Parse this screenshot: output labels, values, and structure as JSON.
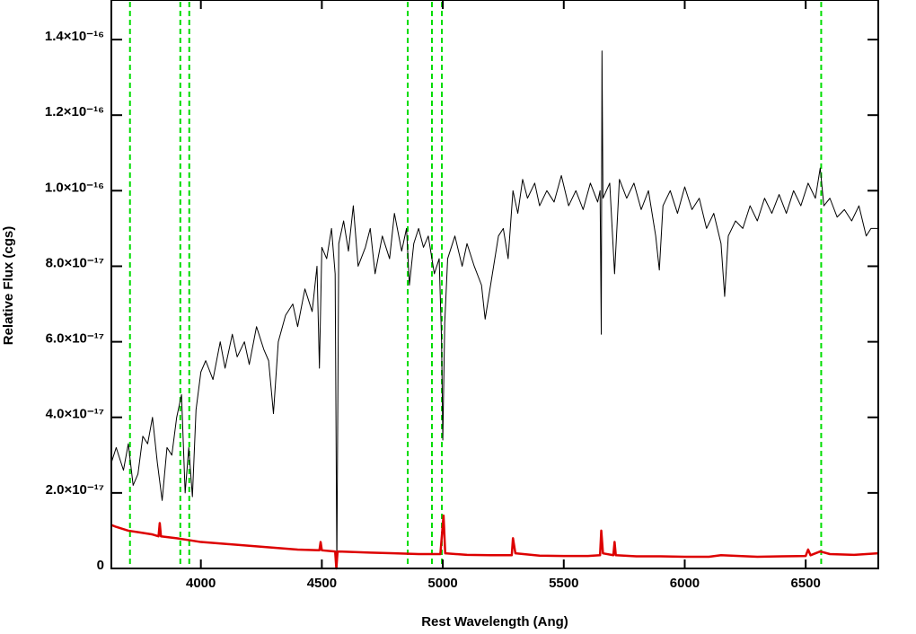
{
  "chart_data": {
    "type": "line",
    "xlabel": "Rest Wavelength (Ang)",
    "ylabel": "Relative Flux (cgs)",
    "xlim": [
      3630,
      6800
    ],
    "xticks": [
      4000,
      4500,
      5000,
      5500,
      6000,
      6500
    ],
    "ylim": [
      0,
      1.5e-16
    ],
    "yticks": [
      0,
      {
        "value": 2e-17,
        "label": "2.0×10⁻¹⁷"
      },
      {
        "value": 4e-17,
        "label": "4.0×10⁻¹⁷"
      },
      {
        "value": 6e-17,
        "label": "6.0×10⁻¹⁷"
      },
      {
        "value": 8e-17,
        "label": "8.0×10⁻¹⁷"
      },
      {
        "value": 1e-16,
        "label": "1.0×10⁻¹⁶"
      },
      {
        "value": 1.2e-16,
        "label": "1.2×10⁻¹⁶"
      },
      {
        "value": 1.4e-16,
        "label": "1.4×10⁻¹⁶"
      }
    ],
    "vlines": [
      3707,
      3915,
      3952,
      4855,
      4955,
      4996,
      6564
    ],
    "vline_color": "#00dd00",
    "series": [
      {
        "color": "#000000",
        "x": [
          3630,
          3650,
          3680,
          3700,
          3720,
          3740,
          3760,
          3780,
          3800,
          3820,
          3840,
          3860,
          3880,
          3900,
          3920,
          3935,
          3950,
          3965,
          3980,
          4000,
          4020,
          4050,
          4080,
          4100,
          4130,
          4150,
          4180,
          4200,
          4230,
          4260,
          4280,
          4300,
          4320,
          4350,
          4380,
          4400,
          4430,
          4460,
          4480,
          4490,
          4500,
          4520,
          4540,
          4555,
          4562,
          4570,
          4590,
          4610,
          4630,
          4650,
          4680,
          4700,
          4720,
          4750,
          4780,
          4800,
          4830,
          4850,
          4862,
          4880,
          4900,
          4920,
          4940,
          4965,
          4985,
          4995,
          5000,
          5008,
          5020,
          5050,
          5080,
          5100,
          5130,
          5160,
          5175,
          5190,
          5210,
          5230,
          5250,
          5270,
          5290,
          5310,
          5330,
          5350,
          5380,
          5400,
          5430,
          5460,
          5490,
          5520,
          5550,
          5580,
          5610,
          5640,
          5650,
          5655,
          5658,
          5662,
          5690,
          5710,
          5730,
          5760,
          5790,
          5820,
          5850,
          5880,
          5895,
          5910,
          5940,
          5970,
          6000,
          6030,
          6060,
          6090,
          6120,
          6150,
          6165,
          6180,
          6210,
          6240,
          6270,
          6300,
          6330,
          6360,
          6390,
          6420,
          6450,
          6480,
          6510,
          6540,
          6560,
          6575,
          6600,
          6630,
          6660,
          6690,
          6720,
          6750,
          6770,
          6800
        ],
        "values": [
          2.8e-17,
          3.2e-17,
          2.6e-17,
          3.3e-17,
          2.2e-17,
          2.5e-17,
          3.5e-17,
          3.3e-17,
          4e-17,
          2.8e-17,
          1.8e-17,
          3.2e-17,
          3e-17,
          4e-17,
          4.6e-17,
          2e-17,
          3.2e-17,
          1.9e-17,
          4.2e-17,
          5.2e-17,
          5.5e-17,
          5e-17,
          6e-17,
          5.3e-17,
          6.2e-17,
          5.6e-17,
          6e-17,
          5.4e-17,
          6.4e-17,
          5.8e-17,
          5.5e-17,
          4.1e-17,
          6e-17,
          6.7e-17,
          7e-17,
          6.4e-17,
          7.4e-17,
          6.8e-17,
          8e-17,
          5.3e-17,
          8.5e-17,
          8.2e-17,
          9e-17,
          7.8e-17,
          0,
          8.6e-17,
          9.2e-17,
          8.4e-17,
          9.6e-17,
          8e-17,
          8.5e-17,
          9e-17,
          7.8e-17,
          8.8e-17,
          8.2e-17,
          9.4e-17,
          8.4e-17,
          9e-17,
          7.5e-17,
          8.6e-17,
          9e-17,
          8.5e-17,
          8.8e-17,
          7.8e-17,
          8.2e-17,
          6e-17,
          3.4e-17,
          6.5e-17,
          8.2e-17,
          8.8e-17,
          8e-17,
          8.6e-17,
          8e-17,
          7.5e-17,
          6.6e-17,
          7.2e-17,
          8e-17,
          8.8e-17,
          9e-17,
          8.2e-17,
          1e-16,
          9.4e-17,
          1.03e-16,
          9.8e-17,
          1.02e-16,
          9.6e-17,
          1e-16,
          9.7e-17,
          1.04e-16,
          9.6e-17,
          1e-16,
          9.5e-17,
          1.02e-16,
          9.7e-17,
          1e-16,
          6.2e-17,
          1.37e-16,
          9.8e-17,
          1.02e-16,
          7.8e-17,
          1.03e-16,
          9.8e-17,
          1.02e-16,
          9.5e-17,
          1e-16,
          8.8e-17,
          7.9e-17,
          9.6e-17,
          1e-16,
          9.4e-17,
          1.01e-16,
          9.5e-17,
          9.8e-17,
          9e-17,
          9.4e-17,
          8.6e-17,
          7.2e-17,
          8.8e-17,
          9.2e-17,
          9e-17,
          9.6e-17,
          9.2e-17,
          9.8e-17,
          9.4e-17,
          9.9e-17,
          9.4e-17,
          1e-16,
          9.6e-17,
          1.02e-16,
          9.8e-17,
          1.06e-16,
          9.6e-17,
          9.8e-17,
          9.3e-17,
          9.5e-17,
          9.2e-17,
          9.6e-17,
          8.8e-17,
          9e-17,
          9e-17
        ]
      },
      {
        "color": "#dd0000",
        "x": [
          3630,
          3650,
          3700,
          3750,
          3800,
          3825,
          3830,
          3835,
          3900,
          3950,
          4000,
          4100,
          4200,
          4300,
          4400,
          4490,
          4495,
          4500,
          4555,
          4560,
          4565,
          4700,
          4800,
          4900,
          4990,
          5003,
          5010,
          5100,
          5200,
          5285,
          5290,
          5300,
          5400,
          5500,
          5600,
          5650,
          5655,
          5662,
          5705,
          5710,
          5715,
          5800,
          5900,
          6000,
          6100,
          6150,
          6300,
          6400,
          6500,
          6510,
          6520,
          6560,
          6600,
          6700,
          6800
        ],
        "values": [
          1.15e-17,
          1.1e-17,
          1e-17,
          9.5e-18,
          9e-18,
          8.5e-18,
          1.2e-17,
          8.5e-18,
          8e-18,
          7.5e-18,
          7e-18,
          6.5e-18,
          6e-18,
          5.5e-18,
          5e-18,
          4.8e-18,
          7e-18,
          4.8e-18,
          4.5e-18,
          0,
          4.5e-18,
          4.2e-18,
          4e-18,
          3.8e-18,
          3.8e-18,
          1.4e-17,
          4e-18,
          3.6e-18,
          3.5e-18,
          3.5e-18,
          8e-18,
          4e-18,
          3.4e-18,
          3.3e-18,
          3.3e-18,
          3.5e-18,
          1e-17,
          4e-18,
          3.5e-18,
          7e-18,
          3.5e-18,
          3.2e-18,
          3.2e-18,
          3.1e-18,
          3.1e-18,
          3.5e-18,
          3.1e-18,
          3.2e-18,
          3.3e-18,
          5e-18,
          3.5e-18,
          4.5e-18,
          3.8e-18,
          3.6e-18,
          4e-18
        ]
      }
    ]
  }
}
